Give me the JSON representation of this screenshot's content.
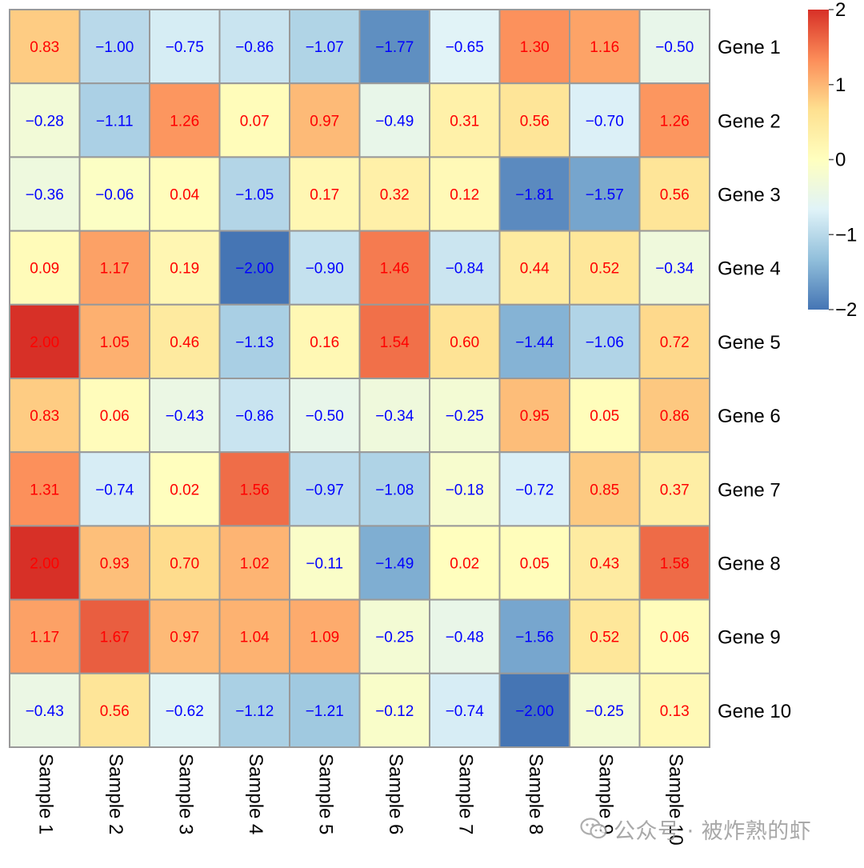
{
  "chart_data": {
    "type": "heatmap",
    "title": "",
    "rows": [
      "Gene 1",
      "Gene 2",
      "Gene 3",
      "Gene 4",
      "Gene 5",
      "Gene 6",
      "Gene 7",
      "Gene 8",
      "Gene 9",
      "Gene 10"
    ],
    "columns": [
      "Sample 1",
      "Sample 2",
      "Sample 3",
      "Sample 4",
      "Sample 5",
      "Sample 6",
      "Sample 7",
      "Sample 8",
      "Sample 9",
      "Sample 10"
    ],
    "values": [
      [
        0.83,
        -1.0,
        -0.75,
        -0.86,
        -1.07,
        -1.77,
        -0.65,
        1.3,
        1.16,
        -0.5
      ],
      [
        -0.28,
        -1.11,
        1.26,
        0.07,
        0.97,
        -0.49,
        0.31,
        0.56,
        -0.7,
        1.26
      ],
      [
        -0.36,
        -0.06,
        0.04,
        -1.05,
        0.17,
        0.32,
        0.12,
        -1.81,
        -1.57,
        0.56
      ],
      [
        0.09,
        1.17,
        0.19,
        -2.0,
        -0.9,
        1.46,
        -0.84,
        0.44,
        0.52,
        -0.34
      ],
      [
        2.0,
        1.05,
        0.46,
        -1.13,
        0.16,
        1.54,
        0.6,
        -1.44,
        -1.06,
        0.72
      ],
      [
        0.83,
        0.06,
        -0.43,
        -0.86,
        -0.5,
        -0.34,
        -0.25,
        0.95,
        0.05,
        0.86
      ],
      [
        1.31,
        -0.74,
        0.02,
        1.56,
        -0.97,
        -1.08,
        -0.18,
        -0.72,
        0.85,
        0.37
      ],
      [
        2.0,
        0.93,
        0.7,
        1.02,
        -0.11,
        -1.49,
        0.02,
        0.05,
        0.43,
        1.58
      ],
      [
        1.17,
        1.67,
        0.97,
        1.04,
        1.09,
        -0.25,
        -0.48,
        -1.56,
        0.52,
        0.06
      ],
      [
        -0.43,
        0.56,
        -0.62,
        -1.12,
        -1.21,
        -0.12,
        -0.74,
        -2.0,
        -0.25,
        0.13
      ]
    ],
    "display_labels": [
      [
        "0.83",
        "−1.00",
        "−0.75",
        "−0.86",
        "−1.07",
        "−1.77",
        "−0.65",
        "1.30",
        "1.16",
        "−0.50"
      ],
      [
        "−0.28",
        "−1.11",
        "1.26",
        "0.07",
        "0.97",
        "−0.49",
        "0.31",
        "0.56",
        "−0.70",
        "1.26"
      ],
      [
        "−0.36",
        "−0.06",
        "0.04",
        "−1.05",
        "0.17",
        "0.32",
        "0.12",
        "−1.81",
        "−1.57",
        "0.56"
      ],
      [
        "0.09",
        "1.17",
        "0.19",
        "−2.00",
        "−0.90",
        "1.46",
        "−0.84",
        "0.44",
        "0.52",
        "−0.34"
      ],
      [
        "2.00",
        "1.05",
        "0.46",
        "−1.13",
        "0.16",
        "1.54",
        "0.60",
        "−1.44",
        "−1.06",
        "0.72"
      ],
      [
        "0.83",
        "0.06",
        "−0.43",
        "−0.86",
        "−0.50",
        "−0.34",
        "−0.25",
        "0.95",
        "0.05",
        "0.86"
      ],
      [
        "1.31",
        "−0.74",
        "0.02",
        "1.56",
        "−0.97",
        "−1.08",
        "−0.18",
        "−0.72",
        "0.85",
        "0.37"
      ],
      [
        "2.00",
        "0.93",
        "0.70",
        "1.02",
        "−0.11",
        "−1.49",
        "0.02",
        "0.05",
        "0.43",
        "1.58"
      ],
      [
        "1.17",
        "1.67",
        "0.97",
        "1.04",
        "1.09",
        "−0.25",
        "−0.48",
        "−1.56",
        "0.52",
        "0.06"
      ],
      [
        "−0.43",
        "0.56",
        "−0.62",
        "−1.12",
        "−1.21",
        "−0.12",
        "−0.74",
        "−2.00",
        "−0.25",
        "0.13"
      ]
    ],
    "color_scale": {
      "min": -2,
      "max": 2,
      "stops": [
        "#4575b4",
        "#91bfdb",
        "#e0f3f8",
        "#ffffbf",
        "#fee090",
        "#fc8d59",
        "#d73027"
      ],
      "ticks": [
        2,
        1,
        0,
        -1,
        -2
      ],
      "tick_labels": [
        "2",
        "1",
        "0",
        "−1",
        "−2"
      ]
    },
    "cell_border_color": "#999999",
    "positive_label_color": "#ff0000",
    "negative_label_color": "#0000ff",
    "legend": "right",
    "grid": false
  },
  "watermark": {
    "icon": "wechat-icon",
    "text": "公众号 · 被炸熟的虾"
  }
}
